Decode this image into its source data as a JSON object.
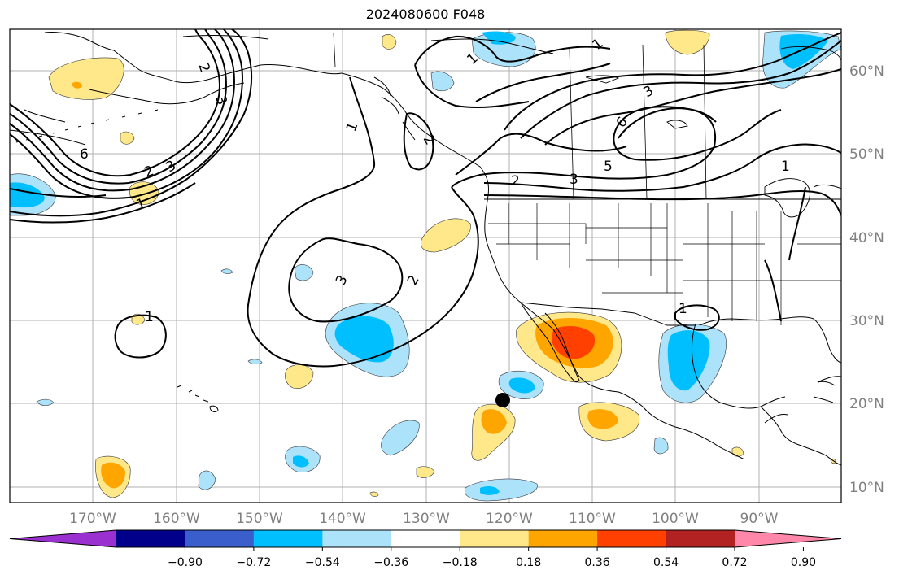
{
  "title": "2024080600 F048",
  "lon_labels": [
    "170°W",
    "160°W",
    "150°W",
    "140°W",
    "130°W",
    "120°W",
    "110°W",
    "100°W",
    "90°W"
  ],
  "lat_labels": [
    "60°N",
    "50°N",
    "40°N",
    "30°N",
    "20°N",
    "10°N"
  ],
  "colorbar": {
    "ticks": [
      "−0.90",
      "−0.72",
      "−0.54",
      "−0.36",
      "−0.18",
      "0.18",
      "0.36",
      "0.54",
      "0.72",
      "0.90"
    ],
    "colors": [
      "#9b30d0",
      "#00008b",
      "#3a5fcd",
      "#00bfff",
      "#ade2fb",
      "#ffffff",
      "#ffe88a",
      "#ffa500",
      "#ff4000",
      "#b22222",
      "#ff88aa"
    ]
  },
  "contour_labels": [
    "1",
    "2",
    "3",
    "6",
    "1",
    "2",
    "3",
    "1",
    "2",
    "3",
    "1",
    "2",
    "3",
    "5",
    "6",
    "1",
    "1",
    "2",
    "3",
    "1"
  ],
  "colors": {
    "neg_light": "#ade2fb",
    "neg_mid": "#00bfff",
    "pos_light": "#ffe88a",
    "pos_mid": "#ffa500",
    "pos_strong": "#ff4000"
  }
}
